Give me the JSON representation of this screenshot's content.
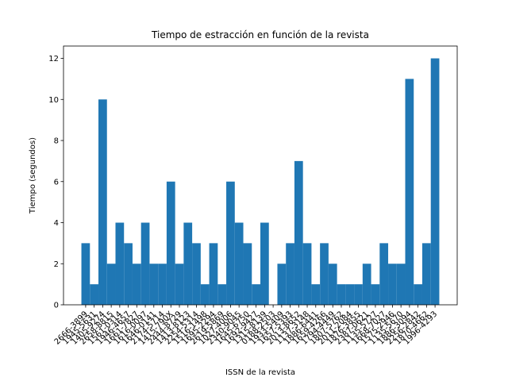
{
  "chart_data": {
    "type": "bar",
    "title": "Tiempo de estracción en función de la revista",
    "xlabel": "ISSN de la revista",
    "ylabel": "Tiempo (segundos)",
    "categories": [
      "2666-3899",
      "1945-5631",
      "1405-9274",
      "2658-8815",
      "1561-0314",
      "1946-4657",
      "1661-7827",
      "1616-0097",
      "1646-0141",
      "2174-5714",
      "1415-790X",
      "2444-8729",
      "1413-8123",
      "2254-5314",
      "1516-1498",
      "1695-2294",
      "2619-5869",
      "1027-4006",
      "2340-9045",
      "1645-6750",
      "1692-9427",
      "1315-8139",
      "0188-2503",
      "1933-5409",
      "1657-5393",
      "2013-8652",
      "1137-3148",
      "1886-6441",
      "1659-4266",
      "1794-4449",
      "1807-5762",
      "2011-2084",
      "1876-3855",
      "2387-0621",
      "1135-5727",
      "1668-7027",
      "1575-2946",
      "1135-5670",
      "1886-3094",
      "2256-2842",
      "1870-4662",
      "1996-4293"
    ],
    "values": [
      3,
      1,
      10,
      2,
      4,
      3,
      2,
      4,
      2,
      2,
      6,
      2,
      4,
      3,
      1,
      3,
      1,
      6,
      4,
      3,
      1,
      4,
      0,
      2,
      3,
      7,
      3,
      1,
      3,
      2,
      1,
      1,
      1,
      2,
      1,
      3,
      2,
      2,
      11,
      1,
      3,
      12
    ],
    "color": "#1f77b4",
    "ylim": [
      0,
      12.6
    ],
    "yticks": [
      0,
      2,
      4,
      6,
      8,
      10,
      12
    ]
  }
}
